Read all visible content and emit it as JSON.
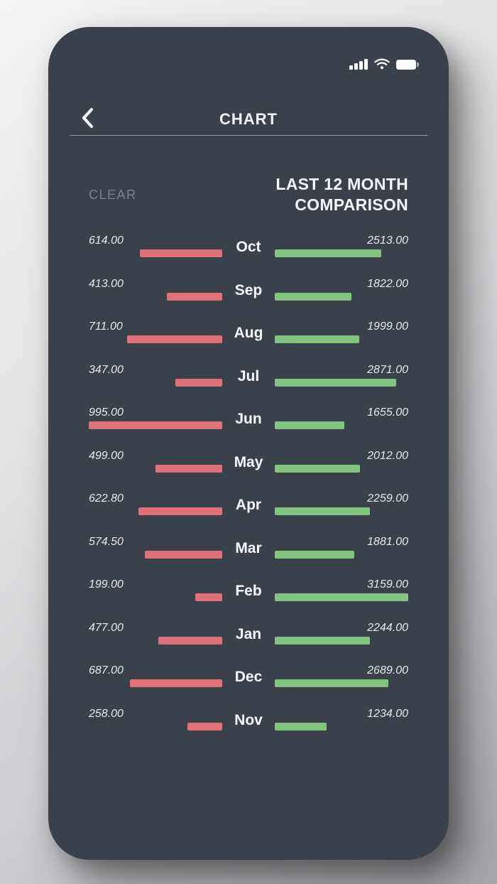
{
  "status_bar": {
    "icons": [
      "cellular-signal-icon",
      "wifi-icon",
      "battery-icon"
    ],
    "battery_level": "full"
  },
  "header": {
    "title": "CHART"
  },
  "chart_header": {
    "clear_label": "CLEAR",
    "title_line1": "LAST 12 MONTH",
    "title_line2": "COMPARISON"
  },
  "colors": {
    "screen_background": "#3a414b",
    "left_bar": "#e0717a",
    "right_bar": "#82c481",
    "title_text": "#f7f8f9",
    "value_text": "#e7eaed",
    "muted_text": "#7a8190"
  },
  "chart_data": {
    "type": "bar",
    "variant": "tornado-comparison",
    "title": "LAST 12 MONTH COMPARISON",
    "categories": [
      "Oct",
      "Sep",
      "Aug",
      "Jul",
      "Jun",
      "May",
      "Apr",
      "Mar",
      "Feb",
      "Jan",
      "Dec",
      "Nov"
    ],
    "series": [
      {
        "name": "left-bars",
        "side": "left",
        "color": "#e0717a",
        "values": [
          614.0,
          413.0,
          711.0,
          347.0,
          995.0,
          499.0,
          622.8,
          574.5,
          199.0,
          477.0,
          687.0,
          258.0
        ],
        "labels": [
          "614.00",
          "413.00",
          "711.00",
          "347.00",
          "995.00",
          "499.00",
          "622.80",
          "574.50",
          "199.00",
          "477.00",
          "687.00",
          "258.00"
        ]
      },
      {
        "name": "right-bars",
        "side": "right",
        "color": "#82c481",
        "values": [
          2513.0,
          1822.0,
          1999.0,
          2871.0,
          1655.0,
          2012.0,
          2259.0,
          1881.0,
          3159.0,
          2244.0,
          2689.0,
          1234.0
        ],
        "labels": [
          "2513.00",
          "1822.00",
          "1999.00",
          "2871.00",
          "1655.00",
          "2012.00",
          "2259.00",
          "1881.00",
          "3159.00",
          "2244.00",
          "2689.00",
          "1234.00"
        ]
      }
    ],
    "layout": {
      "bars_normalized_per_side": true,
      "legend": "none",
      "grid": "off"
    }
  }
}
